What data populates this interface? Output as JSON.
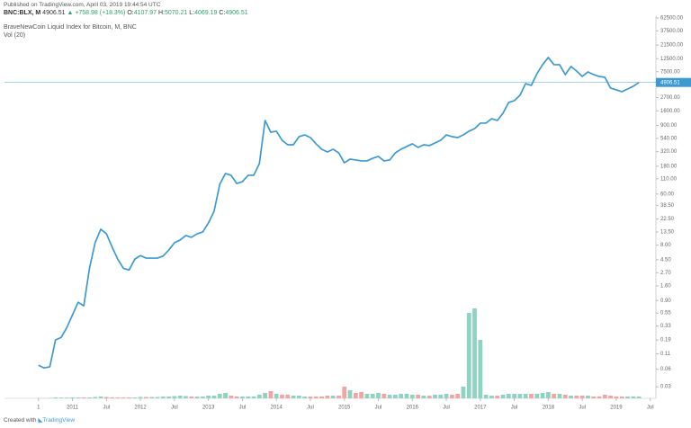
{
  "header": {
    "published": "Published on TradingView.com, April 03, 2019 19:44:54 UTC",
    "symbol": "BNC:BLX, M",
    "price": "4906.51",
    "change": "+758.98 (+18.3%)",
    "ohlc": [
      {
        "key": "O:",
        "value": "4107.97"
      },
      {
        "key": "H:",
        "value": "5070.21"
      },
      {
        "key": "L:",
        "value": "4069.19"
      },
      {
        "key": "C:",
        "value": "4906.51"
      }
    ]
  },
  "footer": {
    "created": "Created with",
    "brand": "TradingView"
  },
  "chart_data": {
    "type": "line",
    "log_y": true,
    "legend": [
      "BraveNewCoin Liquid Index for Bitcoin, M, BNC",
      "Vol (20)"
    ],
    "x": [
      "2010-07",
      "2010-08",
      "2010-09",
      "2010-10",
      "2010-11",
      "2010-12",
      "2011-01",
      "2011-02",
      "2011-03",
      "2011-04",
      "2011-05",
      "2011-06",
      "2011-07",
      "2011-08",
      "2011-09",
      "2011-10",
      "2011-11",
      "2011-12",
      "2012-01",
      "2012-02",
      "2012-03",
      "2012-04",
      "2012-05",
      "2012-06",
      "2012-07",
      "2012-08",
      "2012-09",
      "2012-10",
      "2012-11",
      "2012-12",
      "2013-01",
      "2013-02",
      "2013-03",
      "2013-04",
      "2013-05",
      "2013-06",
      "2013-07",
      "2013-08",
      "2013-09",
      "2013-10",
      "2013-11",
      "2013-12",
      "2014-01",
      "2014-02",
      "2014-03",
      "2014-04",
      "2014-05",
      "2014-06",
      "2014-07",
      "2014-08",
      "2014-09",
      "2014-10",
      "2014-11",
      "2014-12",
      "2015-01",
      "2015-02",
      "2015-03",
      "2015-04",
      "2015-05",
      "2015-06",
      "2015-07",
      "2015-08",
      "2015-09",
      "2015-10",
      "2015-11",
      "2015-12",
      "2016-01",
      "2016-02",
      "2016-03",
      "2016-04",
      "2016-05",
      "2016-06",
      "2016-07",
      "2016-08",
      "2016-09",
      "2016-10",
      "2016-11",
      "2016-12",
      "2017-01",
      "2017-02",
      "2017-03",
      "2017-04",
      "2017-05",
      "2017-06",
      "2017-07",
      "2017-08",
      "2017-09",
      "2017-10",
      "2017-11",
      "2017-12",
      "2018-01",
      "2018-02",
      "2018-03",
      "2018-04",
      "2018-05",
      "2018-06",
      "2018-07",
      "2018-08",
      "2018-09",
      "2018-10",
      "2018-11",
      "2018-12",
      "2019-01",
      "2019-02",
      "2019-03",
      "2019-04",
      "2019-05"
    ],
    "series": [
      {
        "name": "BraveNewCoin Liquid Index for Bitcoin, M, BNC",
        "color": "#3d9ad1",
        "values": [
          0.07,
          0.063,
          0.066,
          0.19,
          0.21,
          0.31,
          0.51,
          0.84,
          0.73,
          3.2,
          8.8,
          15,
          12.5,
          7.4,
          4.6,
          3.2,
          3.0,
          4.6,
          5.3,
          4.8,
          4.8,
          4.8,
          5.2,
          6.6,
          8.8,
          9.8,
          11.7,
          10.9,
          12.5,
          13.5,
          19.2,
          30.4,
          88,
          135,
          126,
          91,
          98,
          126,
          126,
          200,
          1095,
          690,
          716,
          502,
          420,
          420,
          578,
          620,
          558,
          436,
          352,
          316,
          352,
          305,
          206,
          238,
          230,
          222,
          222,
          246,
          265,
          222,
          230,
          305,
          352,
          392,
          436,
          378,
          420,
          406,
          451,
          502,
          620,
          578,
          558,
          620,
          716,
          796,
          985,
          985,
          1174,
          1095,
          1455,
          2228,
          2389,
          2957,
          4685,
          4366,
          6929,
          9884,
          13130,
          9884,
          9884,
          6681,
          9210,
          7702,
          6220,
          7440,
          6681,
          6220,
          6010,
          3930,
          3660,
          3405,
          3790,
          4220,
          4906.51
        ]
      },
      {
        "name": "Vol (20)",
        "axis": "volume",
        "up_color": "#8fd3c3",
        "down_color": "#f2a5a5",
        "values": [
          0.3,
          0.3,
          0.5,
          1,
          0.8,
          0.8,
          1,
          1,
          1,
          1,
          1.5,
          2,
          1.5,
          1,
          1,
          1,
          1,
          1,
          1.5,
          1.5,
          1.5,
          1.5,
          2,
          2,
          2.5,
          3,
          2.5,
          2,
          2,
          2,
          3,
          3,
          5,
          6,
          3,
          2,
          2,
          2,
          2,
          4,
          6,
          8,
          5,
          4,
          4,
          3,
          3,
          2,
          2,
          2,
          2,
          3,
          3,
          3,
          13,
          9,
          6,
          7,
          5,
          5,
          6,
          5,
          4,
          4,
          5,
          5,
          4,
          4,
          3,
          3,
          4,
          4,
          5,
          4,
          5,
          13,
          95,
          100,
          65,
          4,
          3,
          3,
          4,
          5,
          5,
          5,
          5,
          5,
          5,
          6,
          7,
          5,
          5,
          4,
          3,
          3,
          3,
          3,
          2,
          2,
          4,
          3,
          2,
          2,
          2,
          2,
          2
        ]
      }
    ],
    "xlim": [
      "2010-01",
      "2019-08"
    ],
    "xticks": [
      {
        "value": "2010-07",
        "label": "1"
      },
      {
        "value": "2011-01",
        "label": "2011"
      },
      {
        "value": "2011-07",
        "label": "Jul"
      },
      {
        "value": "2012-01",
        "label": "2012"
      },
      {
        "value": "2012-07",
        "label": "Jul"
      },
      {
        "value": "2013-01",
        "label": "2013"
      },
      {
        "value": "2013-07",
        "label": "Jul"
      },
      {
        "value": "2014-01",
        "label": "2014"
      },
      {
        "value": "2014-07",
        "label": "Jul"
      },
      {
        "value": "2015-01",
        "label": "2015"
      },
      {
        "value": "2015-07",
        "label": "Jul"
      },
      {
        "value": "2016-01",
        "label": "2016"
      },
      {
        "value": "2016-07",
        "label": "Jul"
      },
      {
        "value": "2017-01",
        "label": "2017"
      },
      {
        "value": "2017-07",
        "label": "Jul"
      },
      {
        "value": "2018-01",
        "label": "2018"
      },
      {
        "value": "2018-07",
        "label": "Jul"
      },
      {
        "value": "2019-01",
        "label": "2019"
      },
      {
        "value": "2019-07",
        "label": "Jul"
      }
    ],
    "ylim": [
      0.019,
      67000
    ],
    "yticks": [
      {
        "value": 62500,
        "label": "62500.00"
      },
      {
        "value": 37500,
        "label": "37500.00"
      },
      {
        "value": 21500,
        "label": "21500.00"
      },
      {
        "value": 12500,
        "label": "12500.00"
      },
      {
        "value": 7500,
        "label": "7500.00"
      },
      {
        "value": 2700,
        "label": "2700.00"
      },
      {
        "value": 1600,
        "label": "1600.00"
      },
      {
        "value": 900,
        "label": "900.00"
      },
      {
        "value": 540,
        "label": "540.00"
      },
      {
        "value": 320,
        "label": "320.00"
      },
      {
        "value": 180,
        "label": "180.00"
      },
      {
        "value": 110,
        "label": "110.00"
      },
      {
        "value": 60,
        "label": "60.00"
      },
      {
        "value": 38.5,
        "label": "38.50"
      },
      {
        "value": 22.5,
        "label": "22.50"
      },
      {
        "value": 13.5,
        "label": "13.50"
      },
      {
        "value": 8,
        "label": "8.00"
      },
      {
        "value": 4.5,
        "label": "4.50"
      },
      {
        "value": 2.7,
        "label": "2.70"
      },
      {
        "value": 1.6,
        "label": "1.60"
      },
      {
        "value": 0.9,
        "label": "0.90"
      },
      {
        "value": 0.55,
        "label": "0.55"
      },
      {
        "value": 0.33,
        "label": "0.33"
      },
      {
        "value": 0.19,
        "label": "0.19"
      },
      {
        "value": 0.11,
        "label": "0.11"
      },
      {
        "value": 0.06,
        "label": "0.06"
      },
      {
        "value": 0.03,
        "label": "0.03"
      }
    ],
    "volume_ylim": [
      0,
      130
    ],
    "grid": false
  }
}
